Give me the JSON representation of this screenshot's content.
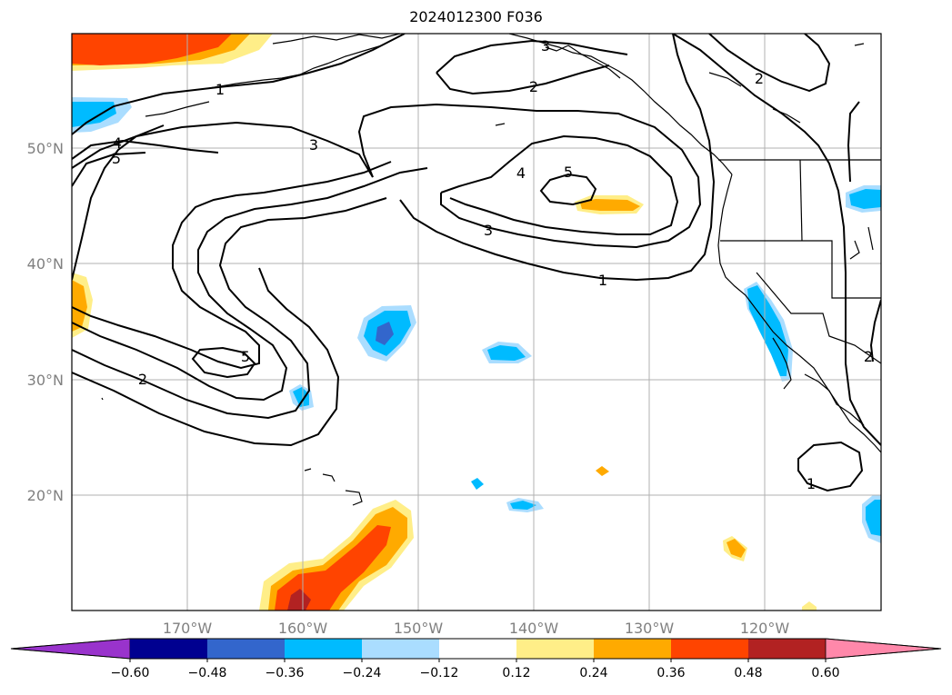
{
  "title": "2024012300 F036",
  "map": {
    "lat_labels": [
      "50°N",
      "40°N",
      "30°N",
      "20°N"
    ],
    "lon_labels": [
      "170°W",
      "160°W",
      "150°W",
      "140°W",
      "130°W",
      "120°W"
    ],
    "contour_labels": [
      "1",
      "2",
      "3",
      "4",
      "5",
      "1",
      "2",
      "3",
      "4",
      "5",
      "5",
      "3",
      "2",
      "1",
      "2"
    ],
    "gridlines": true
  },
  "colorbar": {
    "ticks": [
      "−0.60",
      "−0.48",
      "−0.36",
      "−0.24",
      "−0.12",
      "0.12",
      "0.24",
      "0.36",
      "0.48",
      "0.60"
    ],
    "colors": [
      "#9933cc",
      "#000090",
      "#3366cc",
      "#00bbff",
      "#aaddff",
      "#ffffff",
      "#ffee88",
      "#ffaa00",
      "#ff4400",
      "#b22222",
      "#ff88aa"
    ],
    "extend": "both"
  }
}
